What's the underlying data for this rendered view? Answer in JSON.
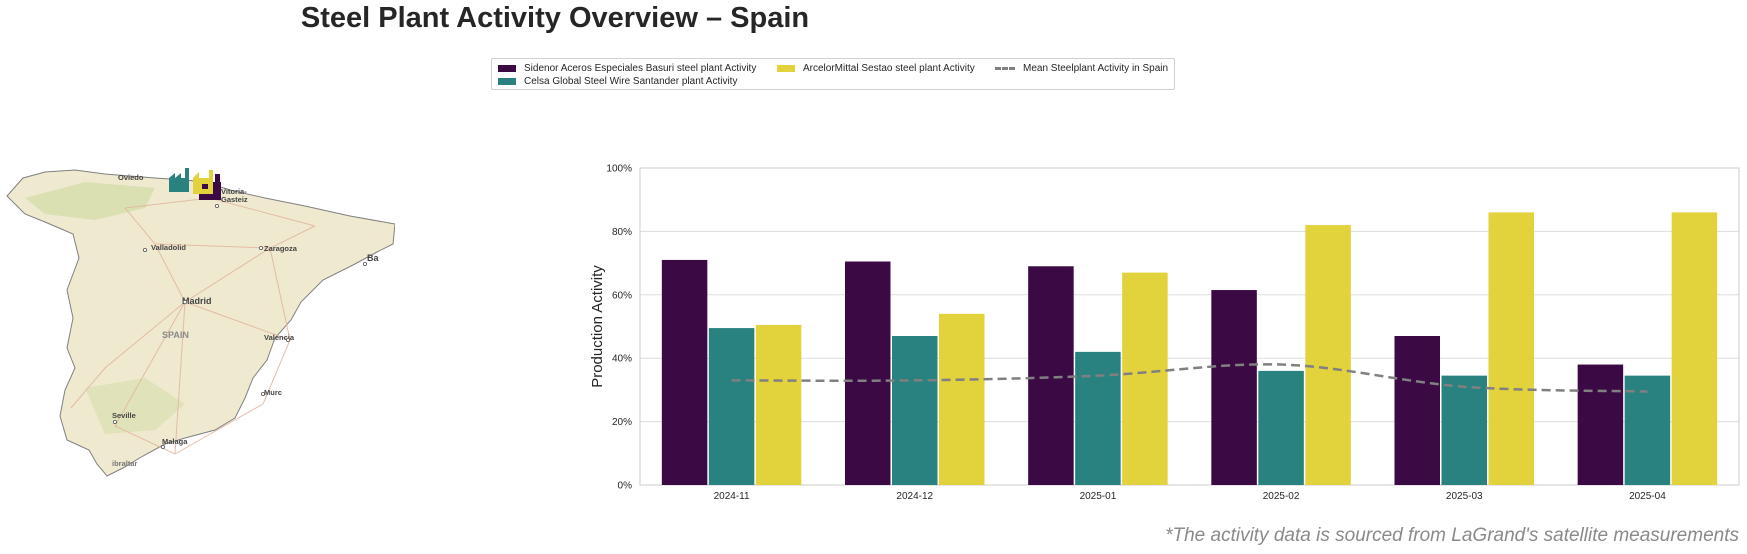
{
  "title": "Steel Plant Activity Overview – Spain",
  "footer_note": "*The activity data is sourced from LaGrand's satellite measurements",
  "legend": [
    {
      "label": "Sidenor Aceros Especiales Basuri steel plant Activity",
      "color": "#3b0a45",
      "kind": "bar"
    },
    {
      "label": "Celsa Global Steel Wire Santander plant Activity",
      "color": "#2a8280",
      "kind": "bar"
    },
    {
      "label": "ArcelorMittal Sestao steel plant Activity",
      "color": "#e2d23c",
      "kind": "bar"
    },
    {
      "label": "Mean Steelplant Activity in Spain",
      "color": "#808080",
      "kind": "line"
    }
  ],
  "map": {
    "labels": [
      "Oviedo",
      "Vitoria-",
      "Gasteiz",
      "Valladolid",
      "Zaragoza",
      "Madrid",
      "SPAIN",
      "Valencia",
      "Murc",
      "Seville",
      "Malaga",
      "ibraltar",
      "Ba"
    ],
    "colors": {
      "land": "#efe9cf",
      "border": "#808080",
      "water": "#b9d6ea",
      "roads": "#e3b7a0",
      "green": "#d3dca8"
    },
    "icons": [
      "factory-icon-teal",
      "factory-icon-yellow",
      "factory-icon-purple"
    ]
  },
  "chart_data": {
    "type": "bar",
    "categories": [
      "2024-11",
      "2024-12",
      "2025-01",
      "2025-02",
      "2025-03",
      "2025-04"
    ],
    "series": [
      {
        "name": "Sidenor Aceros Especiales Basuri steel plant Activity",
        "color": "#3b0a45",
        "values": [
          71,
          70.5,
          69,
          61.5,
          47,
          38
        ]
      },
      {
        "name": "Celsa Global Steel Wire Santander plant Activity",
        "color": "#2a8280",
        "values": [
          49.5,
          47,
          42,
          36,
          34.5,
          34.5
        ]
      },
      {
        "name": "ArcelorMittal Sestao steel plant Activity",
        "color": "#e2d23c",
        "values": [
          50.5,
          54,
          67,
          82,
          86,
          86
        ]
      }
    ],
    "line_series": {
      "name": "Mean Steelplant Activity in Spain",
      "color": "#808080",
      "style": "dashed",
      "values": [
        33,
        33,
        34.5,
        38,
        31,
        29.5
      ]
    },
    "xlabel": "",
    "ylabel": "Production Activity",
    "ylim": [
      0,
      100
    ],
    "yticks": [
      "0%",
      "20%",
      "40%",
      "60%",
      "80%",
      "100%"
    ],
    "grid": true,
    "legend_position": "top-center"
  }
}
